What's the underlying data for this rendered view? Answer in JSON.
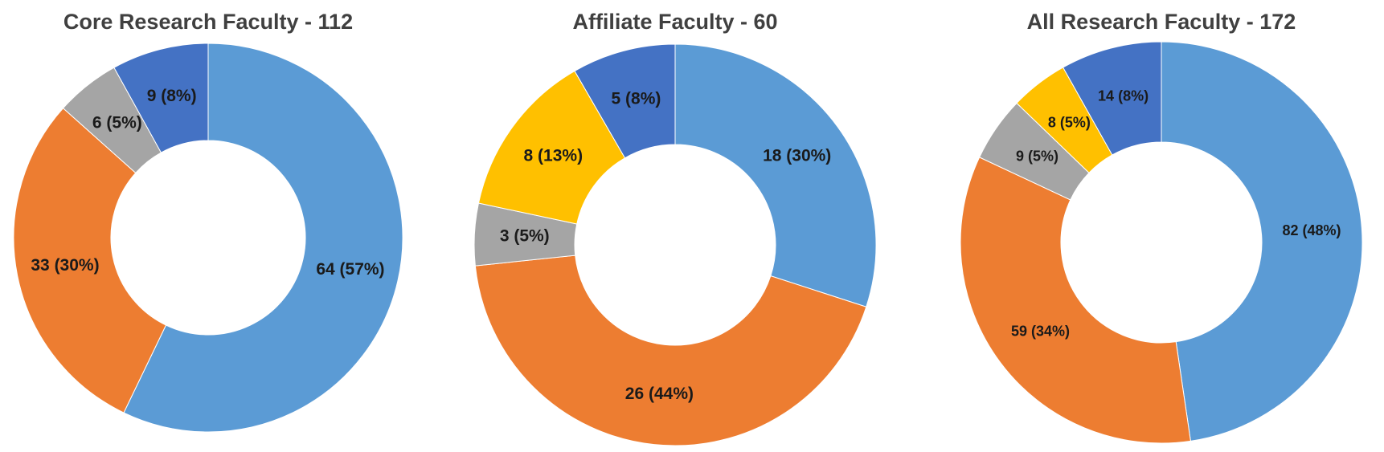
{
  "chart_data": [
    {
      "type": "donut",
      "title": "Core Research Faculty - 112",
      "values": [
        64,
        33,
        6,
        9
      ],
      "value_labels": [
        "64 (57%)",
        "33 (30%)",
        "6 (5%)",
        "9 (8%)"
      ],
      "colors": [
        "#5b9bd5",
        "#ed7d31",
        "#a5a5a5",
        "#4472c4"
      ]
    },
    {
      "type": "donut",
      "title": "Affiliate Faculty - 60",
      "values": [
        18,
        26,
        3,
        8,
        5
      ],
      "value_labels": [
        "18 (30%)",
        "26 (44%)",
        "3 (5%)",
        "8 (13%)",
        "5 (8%)"
      ],
      "colors": [
        "#5b9bd5",
        "#ed7d31",
        "#a5a5a5",
        "#ffc000",
        "#4472c4"
      ]
    },
    {
      "type": "donut",
      "title": "All Research Faculty - 172",
      "values": [
        82,
        59,
        9,
        8,
        14
      ],
      "value_labels": [
        "82 (48%)",
        "59 (34%)",
        "9 (5%)",
        "8 (5%)",
        "14 (8%)"
      ],
      "colors": [
        "#5b9bd5",
        "#ed7d31",
        "#a5a5a5",
        "#ffc000",
        "#4472c4"
      ]
    }
  ]
}
